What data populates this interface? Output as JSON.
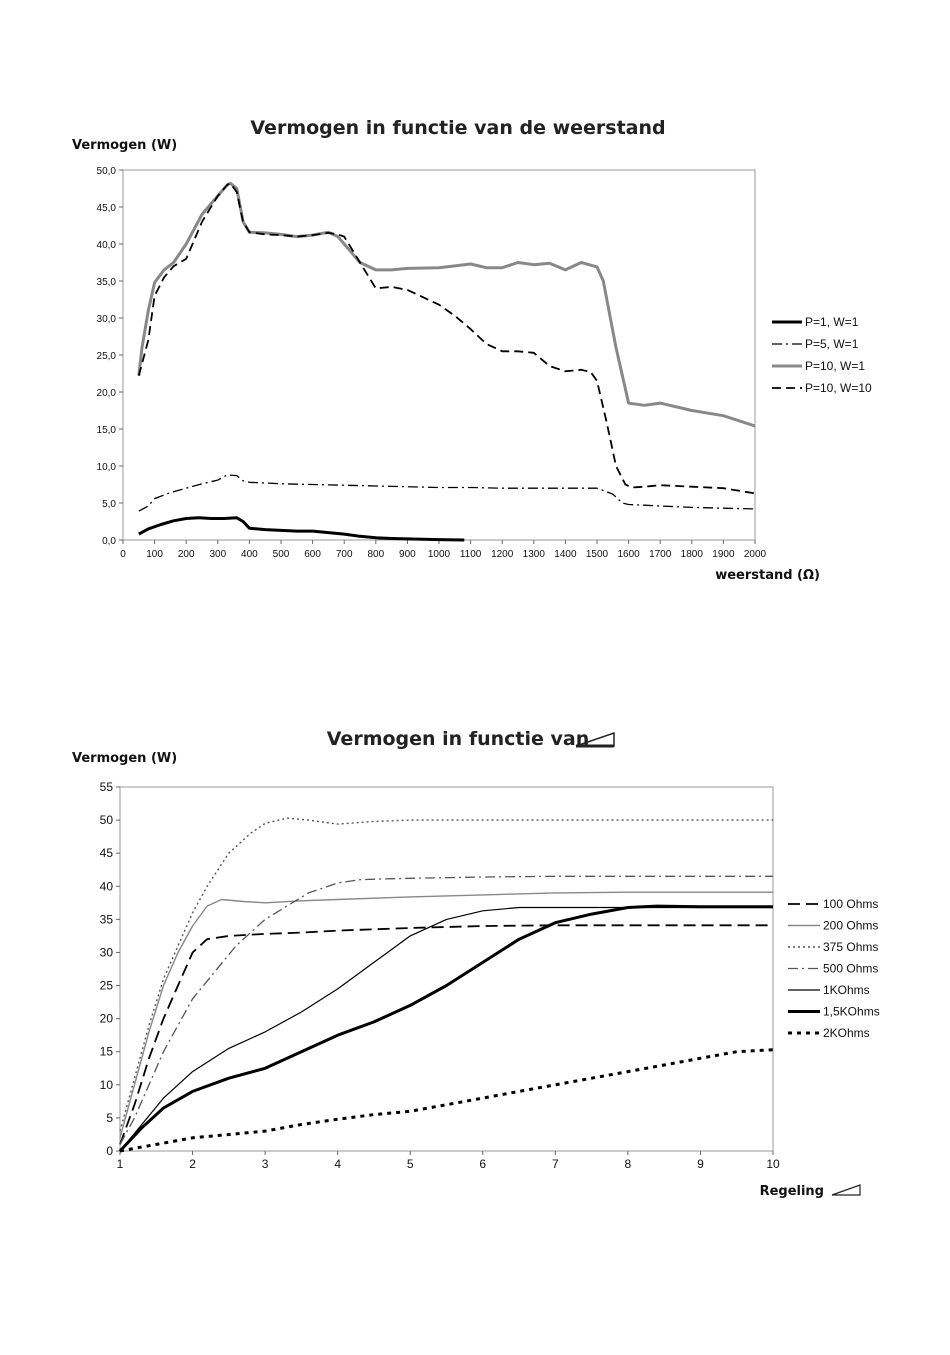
{
  "chart_data": [
    {
      "type": "line",
      "title": "Vermogen in functie van de weerstand",
      "ylabel": "Vermogen (W)",
      "xlabel": "weerstand (Ω)",
      "xlim": [
        0,
        2000
      ],
      "ylim": [
        0,
        50
      ],
      "xticks": [
        "0",
        "100",
        "200",
        "300",
        "400",
        "500",
        "600",
        "700",
        "800",
        "900",
        "1000",
        "1100",
        "1200",
        "1300",
        "1400",
        "1500",
        "1600",
        "1700",
        "1800",
        "1900",
        "2000"
      ],
      "yticks": [
        "0,0",
        "5,0",
        "10,0",
        "15,0",
        "20,0",
        "25,0",
        "30,0",
        "35,0",
        "40,0",
        "45,0",
        "50,0"
      ],
      "grid": false,
      "legend": "right",
      "series": [
        {
          "name": "P=1, W=1",
          "color": "#000000",
          "style": "solid-thick",
          "x": [
            50,
            80,
            120,
            160,
            200,
            240,
            280,
            320,
            360,
            380,
            400,
            450,
            500,
            550,
            600,
            650,
            700,
            750,
            800,
            850,
            900,
            950,
            1000,
            1050,
            1080
          ],
          "y": [
            0.8,
            1.5,
            2.1,
            2.6,
            2.9,
            3.0,
            2.9,
            2.9,
            3.0,
            2.5,
            1.6,
            1.4,
            1.3,
            1.2,
            1.2,
            1.0,
            0.8,
            0.5,
            0.3,
            0.2,
            0.15,
            0.1,
            0.05,
            0.02,
            0.0
          ]
        },
        {
          "name": "P=5, W=1",
          "color": "#000000",
          "style": "dashdot",
          "x": [
            50,
            80,
            100,
            150,
            200,
            250,
            300,
            330,
            360,
            380,
            400,
            450,
            500,
            600,
            700,
            800,
            900,
            1000,
            1100,
            1200,
            1300,
            1400,
            1500,
            1550,
            1580,
            1600,
            1650,
            1700,
            1800,
            1900,
            2000
          ],
          "y": [
            3.9,
            4.6,
            5.6,
            6.4,
            7.0,
            7.6,
            8.1,
            8.8,
            8.7,
            8.0,
            7.8,
            7.7,
            7.6,
            7.5,
            7.4,
            7.3,
            7.2,
            7.1,
            7.1,
            7.0,
            7.0,
            7.0,
            7.0,
            6.2,
            5.0,
            4.8,
            4.7,
            4.6,
            4.4,
            4.3,
            4.2
          ]
        },
        {
          "name": "P=10, W=1",
          "color": "#888888",
          "style": "solid-thick",
          "x": [
            50,
            60,
            80,
            100,
            130,
            160,
            200,
            250,
            300,
            330,
            340,
            360,
            380,
            400,
            450,
            500,
            550,
            600,
            650,
            680,
            700,
            750,
            800,
            850,
            900,
            1000,
            1100,
            1150,
            1200,
            1250,
            1300,
            1350,
            1400,
            1450,
            1500,
            1520,
            1560,
            1600,
            1650,
            1700,
            1800,
            1900,
            2000
          ],
          "y": [
            22.2,
            26.0,
            31.0,
            34.8,
            36.5,
            37.5,
            40.0,
            44.0,
            46.5,
            48.0,
            48.2,
            47.5,
            43.0,
            41.6,
            41.5,
            41.3,
            41.0,
            41.2,
            41.6,
            41.0,
            40.0,
            37.5,
            36.5,
            36.5,
            36.7,
            36.8,
            37.3,
            36.8,
            36.8,
            37.5,
            37.2,
            37.4,
            36.5,
            37.5,
            36.9,
            35.0,
            26.0,
            18.5,
            18.2,
            18.5,
            17.5,
            16.8,
            15.4
          ]
        },
        {
          "name": "P=10, W=10",
          "color": "#000000",
          "style": "dashed",
          "x": [
            50,
            80,
            100,
            130,
            160,
            200,
            250,
            300,
            330,
            340,
            360,
            380,
            400,
            450,
            500,
            550,
            600,
            650,
            680,
            700,
            750,
            800,
            850,
            900,
            950,
            1000,
            1050,
            1100,
            1150,
            1200,
            1250,
            1300,
            1350,
            1400,
            1450,
            1480,
            1500,
            1530,
            1560,
            1590,
            1610,
            1650,
            1700,
            1800,
            1900,
            2000
          ],
          "y": [
            22.2,
            27.0,
            33.0,
            35.5,
            37.0,
            38.0,
            43.0,
            46.5,
            48.0,
            48.2,
            47.0,
            43.0,
            41.6,
            41.3,
            41.2,
            41.0,
            41.2,
            41.5,
            41.3,
            41.0,
            37.5,
            34.0,
            34.2,
            33.8,
            32.8,
            31.8,
            30.3,
            28.5,
            26.5,
            25.5,
            25.5,
            25.3,
            23.5,
            22.8,
            23.0,
            22.7,
            21.5,
            16.0,
            10.0,
            7.5,
            7.1,
            7.2,
            7.4,
            7.2,
            7.0,
            6.3
          ]
        }
      ]
    },
    {
      "type": "line",
      "title": "Vermogen in functie van",
      "ylabel": "Vermogen (W)",
      "xlabel": "Regeling",
      "xlim": [
        1,
        10
      ],
      "ylim": [
        0,
        55
      ],
      "xticks": [
        "1",
        "2",
        "3",
        "4",
        "5",
        "6",
        "7",
        "8",
        "9",
        "10"
      ],
      "yticks": [
        "0",
        "5",
        "10",
        "15",
        "20",
        "25",
        "30",
        "35",
        "40",
        "45",
        "50",
        "55"
      ],
      "grid": false,
      "legend": "right",
      "series": [
        {
          "name": "100 Ohms",
          "color": "#000000",
          "style": "longdash",
          "x": [
            1,
            1.2,
            1.4,
            1.6,
            1.8,
            2.0,
            2.2,
            2.5,
            3,
            3.5,
            4,
            5,
            6,
            7,
            8,
            9,
            10
          ],
          "y": [
            1,
            7,
            14,
            20,
            25,
            30,
            32,
            32.5,
            32.8,
            33.0,
            33.3,
            33.7,
            34.0,
            34.1,
            34.1,
            34.1,
            34.1
          ]
        },
        {
          "name": "200 Ohms",
          "color": "#888888",
          "style": "solid",
          "x": [
            1,
            1.2,
            1.4,
            1.6,
            1.8,
            2.0,
            2.2,
            2.4,
            2.7,
            3,
            3.5,
            4,
            5,
            6,
            7,
            8,
            9,
            10
          ],
          "y": [
            2,
            10,
            18,
            25,
            30,
            34,
            37,
            38,
            37.7,
            37.5,
            37.8,
            38.0,
            38.4,
            38.7,
            39.0,
            39.1,
            39.1,
            39.1
          ]
        },
        {
          "name": "375 Ohms",
          "color": "#555555",
          "style": "dotted",
          "x": [
            1,
            1.2,
            1.4,
            1.6,
            1.8,
            2.0,
            2.2,
            2.5,
            2.8,
            3.0,
            3.3,
            3.6,
            4.0,
            4.5,
            5,
            6,
            7,
            8,
            9,
            10
          ],
          "y": [
            3,
            11,
            19,
            26,
            31,
            36,
            40,
            45,
            48,
            49.5,
            50.3,
            50.0,
            49.4,
            49.8,
            50.0,
            50.0,
            50.0,
            50.0,
            50.0,
            50.0
          ]
        },
        {
          "name": "500 Ohms",
          "color": "#555555",
          "style": "dashdot",
          "x": [
            1,
            1.2,
            1.4,
            1.6,
            1.8,
            2.0,
            2.3,
            2.6,
            3.0,
            3.3,
            3.6,
            4.0,
            4.3,
            4.6,
            5,
            6,
            7,
            8,
            9,
            10
          ],
          "y": [
            1,
            5,
            10,
            15,
            19,
            23,
            27,
            31,
            35,
            37,
            39,
            40.5,
            41,
            41.1,
            41.2,
            41.4,
            41.5,
            41.5,
            41.5,
            41.5
          ]
        },
        {
          "name": "1KOhms",
          "color": "#000000",
          "style": "solid-thin",
          "x": [
            1,
            1.3,
            1.6,
            2.0,
            2.5,
            3.0,
            3.5,
            4.0,
            4.5,
            5.0,
            5.5,
            6.0,
            6.5,
            7,
            8,
            9,
            10
          ],
          "y": [
            0,
            4,
            8,
            12,
            15.5,
            18,
            21,
            24.5,
            28.5,
            32.5,
            35,
            36.3,
            36.8,
            36.8,
            36.8,
            36.8,
            36.8
          ]
        },
        {
          "name": "1,5KOhms",
          "color": "#000000",
          "style": "solid-thick",
          "x": [
            1,
            1.3,
            1.6,
            2.0,
            2.5,
            3.0,
            3.5,
            4.0,
            4.5,
            5.0,
            5.5,
            6.0,
            6.5,
            7.0,
            7.5,
            8.0,
            8.4,
            9,
            10
          ],
          "y": [
            0,
            3.5,
            6.5,
            9,
            11,
            12.5,
            15,
            17.5,
            19.5,
            22,
            25,
            28.5,
            32,
            34.5,
            35.8,
            36.8,
            37.0,
            36.9,
            36.9
          ]
        },
        {
          "name": "2KOhms",
          "color": "#000000",
          "style": "dotted-thick",
          "x": [
            1,
            1.5,
            2.0,
            2.5,
            3.0,
            3.5,
            4.0,
            4.5,
            5.0,
            5.5,
            6.0,
            6.5,
            7.0,
            7.5,
            8.0,
            8.5,
            9.0,
            9.5,
            10
          ],
          "y": [
            0,
            1,
            2,
            2.5,
            3,
            4,
            4.8,
            5.5,
            6,
            7,
            8,
            9,
            10,
            11,
            12,
            13,
            14,
            15,
            15.3
          ]
        }
      ]
    }
  ]
}
